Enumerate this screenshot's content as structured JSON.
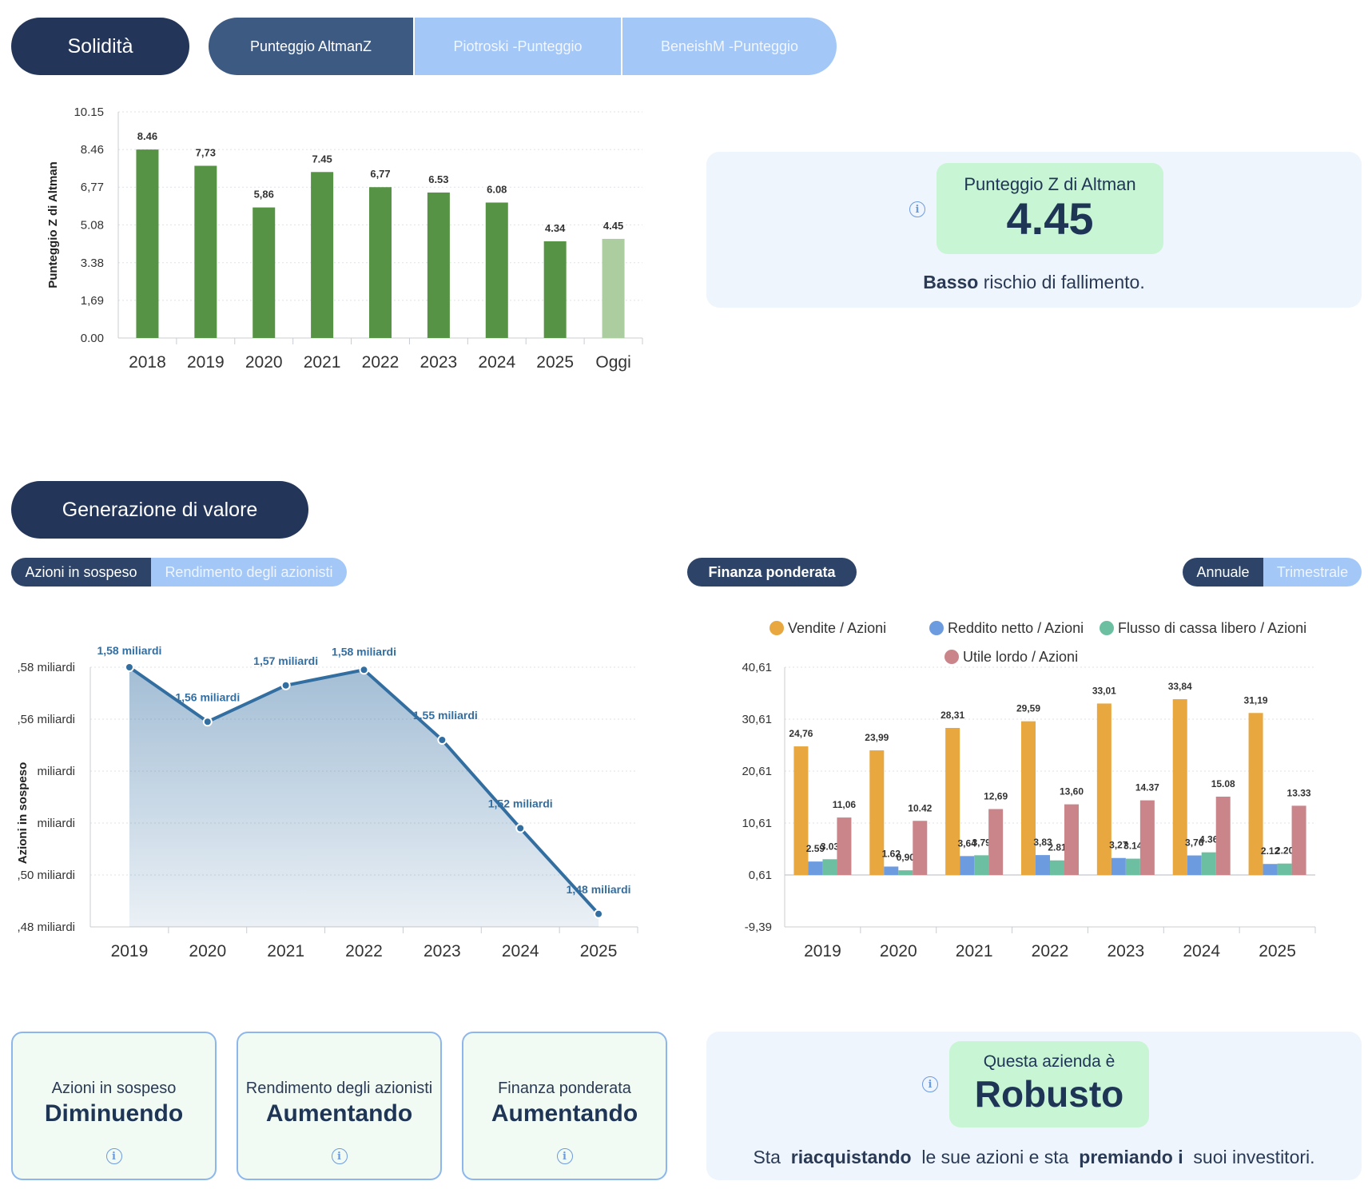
{
  "solidity": {
    "title": "Solidità",
    "tabs": [
      {
        "label": "Punteggio AltmanZ",
        "active": true
      },
      {
        "label": "Piotroski -Punteggio",
        "active": false
      },
      {
        "label": "BeneishM -Punteggio",
        "active": false
      }
    ],
    "score_panel": {
      "label": "Punteggio Z di Altman",
      "value": "4.45",
      "risk_bold": "Basso",
      "risk_text": "rischio di fallimento."
    }
  },
  "value_generation": {
    "title": "Generazione di valore",
    "left_tabs": [
      {
        "label": "Azioni in sospeso",
        "active": true
      },
      {
        "label": "Rendimento degli azionisti",
        "active": false
      }
    ],
    "right_pill": "Finanza ponderata",
    "period_tabs": [
      {
        "label": "Annuale",
        "active": true
      },
      {
        "label": "Trimestrale",
        "active": false
      }
    ],
    "cards": [
      {
        "label": "Azioni in sospeso",
        "value": "Diminuendo"
      },
      {
        "label": "Rendimento degli azionisti",
        "value": "Aumentando"
      },
      {
        "label": "Finanza ponderata",
        "value": "Aumentando"
      }
    ],
    "verdict": {
      "label": "Questa azienda è",
      "value": "Robusto",
      "s1": "Sta",
      "b1": "riacquistando",
      "s2": "le sue azioni e sta",
      "b2": "premiando i",
      "s3": "suoi investitori."
    }
  },
  "chart_data": [
    {
      "id": "altman",
      "type": "bar",
      "ylabel": "Punteggio Z di Altman",
      "ylim": [
        0,
        10.15
      ],
      "yticks": [
        "0.00",
        "1,69",
        "3.38",
        "5.08",
        "6,77",
        "8.46",
        "10.15"
      ],
      "ytick_values": [
        0,
        1.69,
        3.38,
        5.08,
        6.77,
        8.46,
        10.15
      ],
      "categories": [
        "2018",
        "2019",
        "2020",
        "2021",
        "2022",
        "2023",
        "2024",
        "2025",
        "Oggi"
      ],
      "values": [
        8.46,
        7.73,
        5.86,
        7.45,
        6.77,
        6.53,
        6.08,
        4.34,
        4.45
      ],
      "labels": [
        "8.46",
        "7,73",
        "5,86",
        "7.45",
        "6,77",
        "6.53",
        "6.08",
        "4.34",
        "4.45"
      ],
      "colors": [
        "#569344",
        "#569344",
        "#569344",
        "#569344",
        "#569344",
        "#569344",
        "#569344",
        "#569344",
        "#abcd9f"
      ],
      "grid": true
    },
    {
      "id": "shares",
      "type": "area",
      "ylabel": "Azioni in sospeso",
      "ylim": [
        1.48,
        1.58
      ],
      "yticks": [
        ",48 miliardi",
        ",50 miliardi",
        "miliardi",
        "miliardi",
        ",56 miliardi",
        ",58 miliardi"
      ],
      "ytick_values": [
        1.48,
        1.5,
        1.52,
        1.54,
        1.56,
        1.58
      ],
      "x": [
        "2019",
        "2020",
        "2021",
        "2022",
        "2023",
        "2024",
        "2025"
      ],
      "values": [
        1.58,
        1.559,
        1.573,
        1.579,
        1.552,
        1.518,
        1.485
      ],
      "labels": [
        "1,58 miliardi",
        "1,56 miliardi",
        "1,57 miliardi",
        "1,58 miliardi",
        "1,55 miliardi",
        "1,52 miliardi",
        "1,48 miliardi"
      ],
      "color": "#336ea1",
      "grid": true
    },
    {
      "id": "weighted",
      "type": "bar",
      "ylim": [
        -9.39,
        40.61
      ],
      "yticks": [
        "-9,39",
        "0,61",
        "10,61",
        "20,61",
        "30,61",
        "40,61"
      ],
      "ytick_values": [
        -9.39,
        0.61,
        10.61,
        20.61,
        30.61,
        40.61
      ],
      "categories": [
        "2019",
        "2020",
        "2021",
        "2022",
        "2023",
        "2024",
        "2025"
      ],
      "legend_position": "top",
      "series": [
        {
          "name": "Vendite / Azioni",
          "color": "#e8a73f",
          "values": [
            24.76,
            23.99,
            28.31,
            29.59,
            33.01,
            33.84,
            31.19
          ],
          "labels": [
            "24,76",
            "23,99",
            "28,31",
            "29,59",
            "33,01",
            "33,84",
            "31,19"
          ]
        },
        {
          "name": "Reddito netto / Azioni",
          "color": "#6d9be0",
          "values": [
            2.59,
            1.62,
            3.64,
            3.83,
            3.27,
            3.76,
            2.12
          ],
          "labels": [
            "2.59",
            "1.62",
            "3,64",
            "3,83",
            "3,27",
            "3,76",
            "2.12"
          ]
        },
        {
          "name": "Flusso di cassa libero / Azioni",
          "color": "#6cbfa0",
          "values": [
            3.03,
            0.9,
            3.79,
            2.81,
            3.14,
            4.36,
            2.2
          ],
          "labels": [
            "3.03",
            "0,90",
            "3,79",
            "2.81",
            "3.14",
            "4.36",
            "2.20"
          ]
        },
        {
          "name": "Utile lordo / Azioni",
          "color": "#c9858a",
          "values": [
            11.06,
            10.42,
            12.69,
            13.6,
            14.37,
            15.08,
            13.33
          ],
          "labels": [
            "11,06",
            "10.42",
            "12,69",
            "13,60",
            "14.37",
            "15.08",
            "13.33"
          ]
        }
      ],
      "grid": true
    }
  ]
}
